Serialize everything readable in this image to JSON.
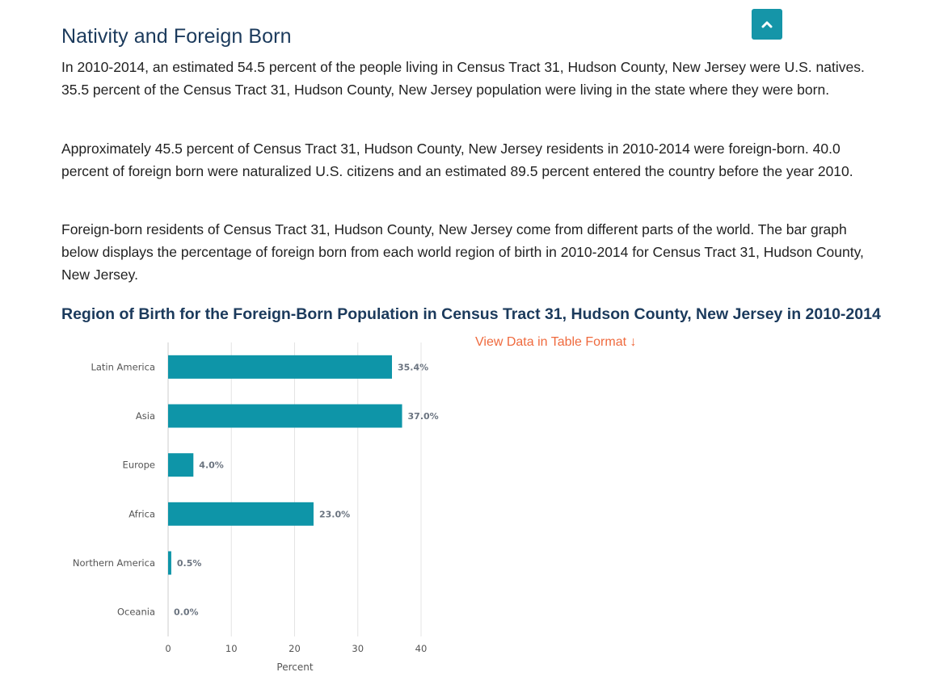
{
  "section": {
    "title": "Nativity and Foreign Born"
  },
  "paragraphs": {
    "p1": "In 2010-2014, an estimated 54.5 percent of the people living in Census Tract 31, Hudson County, New Jersey were U.S. natives. 35.5 percent of the Census Tract 31, Hudson County, New Jersey population were living in the state where they were born.",
    "p2": "Approximately 45.5 percent of Census Tract 31, Hudson County, New Jersey residents in 2010-2014 were foreign-born. 40.0 percent of foreign born were naturalized U.S. citizens and an estimated 89.5 percent entered the country before the year 2010.",
    "p3": "Foreign-born residents of Census Tract 31, Hudson County, New Jersey come from different parts of the world. The bar graph below displays the percentage of foreign born from each world region of birth in 2010-2014 for Census Tract 31, Hudson County, New Jersey."
  },
  "table_link": {
    "label": "View Data in Table Format ↓"
  },
  "icons": {
    "top_button": "chevron-up-icon"
  },
  "colors": {
    "bar": "#0e95a8",
    "title": "#1b3a5c",
    "link": "#ef6a3e",
    "top_button": "#1595a8",
    "gridline": "#e4e4e4"
  },
  "chart_data": {
    "type": "bar",
    "orientation": "horizontal",
    "title": "Region of Birth for the Foreign-Born Population in Census Tract 31, Hudson County, New Jersey in 2010-2014",
    "categories": [
      "Latin America",
      "Asia",
      "Europe",
      "Africa",
      "Northern America",
      "Oceania"
    ],
    "values": [
      35.4,
      37.0,
      4.0,
      23.0,
      0.5,
      0.0
    ],
    "value_labels": [
      "35.4%",
      "37.0%",
      "4.0%",
      "23.0%",
      "0.5%",
      "0.0%"
    ],
    "xlabel": "Percent",
    "ylabel": "",
    "xlim": [
      0,
      40
    ],
    "xticks": [
      0,
      10,
      20,
      30,
      40
    ],
    "grid": true,
    "legend": "none"
  }
}
